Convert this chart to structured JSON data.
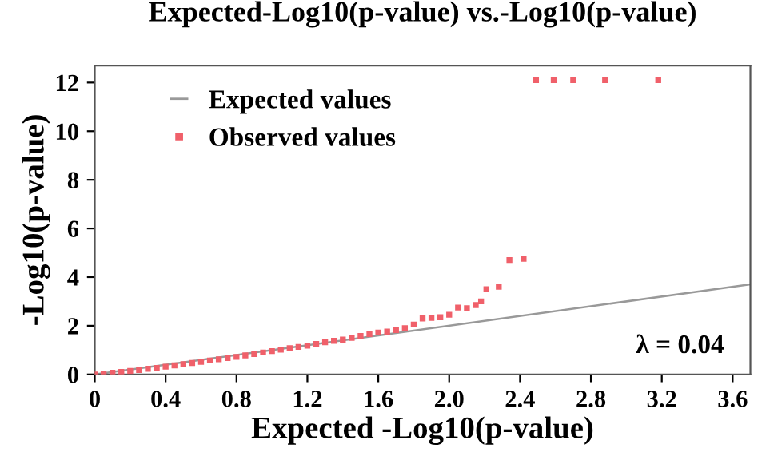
{
  "chart_data": {
    "type": "scatter",
    "title": "Expected-Log10(p-value) vs.-Log10(p-value)",
    "xlabel": "Expected -Log10(p-value)",
    "ylabel": "-Log10(p-value)",
    "series": [
      {
        "name": "Expected values",
        "type": "line",
        "color": "#999999",
        "x": [
          0,
          3.7
        ],
        "values": [
          0,
          3.7
        ],
        "marker": "none"
      },
      {
        "name": "Observed values",
        "color": "#f0606a",
        "marker": "square",
        "x": [
          0,
          0.05,
          0.1,
          0.15,
          0.2,
          0.25,
          0.3,
          0.35,
          0.4,
          0.45,
          0.5,
          0.55,
          0.6,
          0.65,
          0.7,
          0.75,
          0.8,
          0.85,
          0.9,
          0.95,
          1.0,
          1.05,
          1.1,
          1.15,
          1.2,
          1.25,
          1.3,
          1.35,
          1.4,
          1.45,
          1.5,
          1.55,
          1.6,
          1.65,
          1.7,
          1.75,
          1.8,
          1.85,
          1.9,
          1.95,
          2.0,
          2.05,
          2.1,
          2.15,
          2.18,
          2.21,
          2.28,
          2.34,
          2.42,
          2.49,
          2.59,
          2.7,
          2.88,
          3.18
        ],
        "values": [
          0,
          0.03,
          0.07,
          0.1,
          0.14,
          0.18,
          0.23,
          0.27,
          0.32,
          0.37,
          0.42,
          0.47,
          0.52,
          0.57,
          0.62,
          0.67,
          0.72,
          0.78,
          0.84,
          0.9,
          0.96,
          1.02,
          1.08,
          1.13,
          1.18,
          1.25,
          1.32,
          1.38,
          1.43,
          1.5,
          1.58,
          1.66,
          1.72,
          1.76,
          1.82,
          1.9,
          2.05,
          2.3,
          2.32,
          2.35,
          2.45,
          2.75,
          2.72,
          2.85,
          3.0,
          3.5,
          3.6,
          4.7,
          4.75,
          12.1,
          12.1,
          12.1,
          12.1,
          12.1
        ]
      }
    ],
    "xlim": [
      0,
      3.7
    ],
    "xticks": [
      0,
      0.4,
      0.8,
      1.2,
      1.6,
      {
        "value": 2,
        "label": "2.0"
      },
      2.4,
      2.8,
      3.2,
      3.6
    ],
    "ylim": [
      0,
      12.7
    ],
    "yticks": [
      0,
      2,
      4,
      6,
      8,
      10,
      12
    ],
    "grid": false,
    "legend": "top left",
    "annotations": [
      "λ = 0.04"
    ]
  }
}
